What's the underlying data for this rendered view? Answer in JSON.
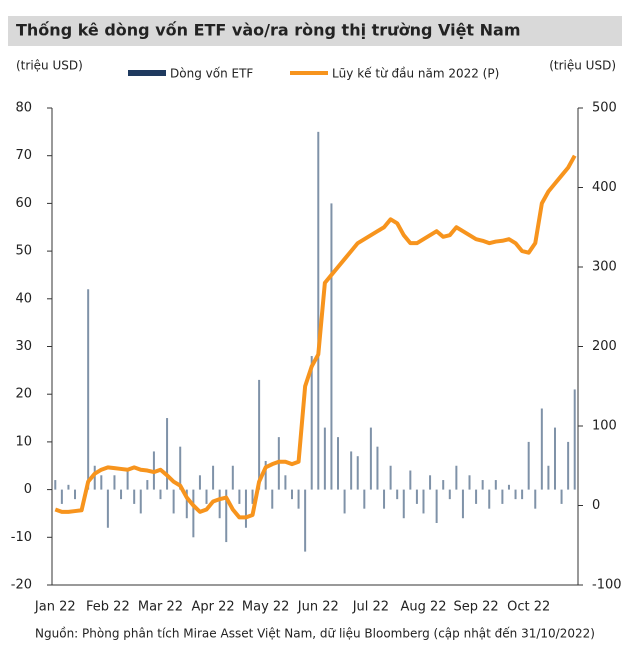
{
  "chart_data": {
    "type": "bar_line",
    "title": "Thống kê dòng vốn ETF vào/ra ròng thị trường Việt Nam",
    "y_label": "(triệu USD)",
    "y2_label": "(triệu USD)",
    "source": "Nguồn: Phòng phân tích Mirae Asset Việt Nam, dữ liệu Bloomberg (cập nhật đến 31/10/2022)",
    "categories": [
      "Jan 22",
      null,
      null,
      null,
      null,
      null,
      null,
      null,
      "Feb 22",
      null,
      null,
      null,
      null,
      null,
      null,
      null,
      "Mar 22",
      null,
      null,
      null,
      null,
      null,
      null,
      null,
      "Apr 22",
      null,
      null,
      null,
      null,
      null,
      null,
      null,
      "May 22",
      null,
      null,
      null,
      null,
      null,
      null,
      null,
      "Jun 22",
      null,
      null,
      null,
      null,
      null,
      null,
      null,
      "Jul 22",
      null,
      null,
      null,
      null,
      null,
      null,
      null,
      "Aug 22",
      null,
      null,
      null,
      null,
      null,
      null,
      null,
      "Sep 22",
      null,
      null,
      null,
      null,
      null,
      null,
      null,
      "Oct 22",
      null,
      null,
      null,
      null,
      null,
      null,
      null
    ],
    "series": [
      {
        "name": "Dòng vốn ETF",
        "type": "bar",
        "color": "#1f3a5f",
        "bar_color": "#7f92a8",
        "values": [
          2,
          -3,
          1,
          -2,
          0,
          42,
          5,
          3,
          -8,
          3,
          -2,
          4,
          -3,
          -5,
          2,
          8,
          -2,
          15,
          -5,
          9,
          -6,
          -10,
          3,
          -3,
          5,
          -6,
          -11,
          5,
          -3,
          -8,
          -3,
          23,
          6,
          -4,
          11,
          3,
          -2,
          -4,
          -13,
          28,
          75,
          13,
          60,
          11,
          -5,
          8,
          7,
          -4,
          13,
          9,
          -4,
          5,
          -2,
          -6,
          4,
          -3,
          -5,
          3,
          -7,
          2,
          -2,
          5,
          -6,
          3,
          -3,
          2,
          -4,
          2,
          -3,
          1,
          -2,
          -2,
          10,
          -4,
          17,
          5,
          13,
          -3,
          10,
          21
        ]
      },
      {
        "name": "Lũy kế từ đầu năm 2022 (P)",
        "type": "line",
        "axis": "y2",
        "color": "#f7941d",
        "values": [
          -5,
          -8,
          -8,
          -7,
          -6,
          30,
          40,
          45,
          48,
          47,
          46,
          45,
          48,
          45,
          44,
          42,
          45,
          38,
          30,
          25,
          10,
          0,
          -8,
          -5,
          5,
          8,
          10,
          -5,
          -15,
          -15,
          -12,
          30,
          48,
          52,
          55,
          55,
          52,
          55,
          150,
          175,
          190,
          280,
          290,
          300,
          310,
          320,
          330,
          335,
          340,
          345,
          350,
          360,
          355,
          340,
          330,
          330,
          335,
          340,
          345,
          338,
          340,
          350,
          345,
          340,
          335,
          333,
          330,
          332,
          333,
          335,
          330,
          320,
          318,
          330,
          380,
          395,
          405,
          415,
          425,
          440
        ]
      }
    ],
    "ylim": [
      -20,
      80
    ],
    "yticks": [
      80,
      70,
      60,
      50,
      40,
      30,
      20,
      10,
      0,
      -10,
      -20
    ],
    "y2lim": [
      -100,
      500
    ],
    "y2ticks": [
      500,
      400,
      300,
      200,
      100,
      0,
      -100
    ],
    "negative_tick_color": "#e00000"
  }
}
